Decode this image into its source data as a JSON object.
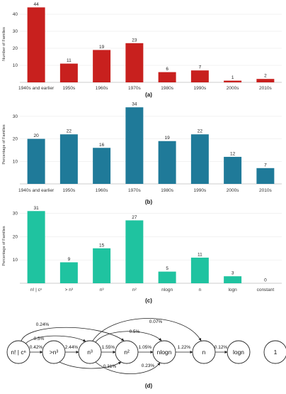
{
  "chart_data": [
    {
      "type": "bar",
      "ylabel": "Number of Families",
      "caption": "(a)",
      "color": "#c8201e",
      "ylim": [
        0,
        45
      ],
      "yticks": [
        10,
        20,
        30,
        40
      ],
      "categories": [
        "1940s and earlier",
        "1950s",
        "1960s",
        "1970s",
        "1980s",
        "1990s",
        "2000s",
        "2010s"
      ],
      "values": [
        44,
        11,
        19,
        23,
        6,
        7,
        1,
        2
      ]
    },
    {
      "type": "bar",
      "ylabel": "Percentage of Families",
      "caption": "(b)",
      "color": "#1f7a99",
      "ylim": [
        0,
        35
      ],
      "yticks": [
        10,
        20,
        30
      ],
      "categories": [
        "1940s and earlier",
        "1950s",
        "1960s",
        "1970s",
        "1980s",
        "1990s",
        "2000s",
        "2010s"
      ],
      "values": [
        20,
        22,
        16,
        34,
        19,
        22,
        12,
        7
      ]
    },
    {
      "type": "bar",
      "ylabel": "Percentage of Families",
      "caption": "(c)",
      "color": "#1fc3a0",
      "ylim": [
        0,
        32
      ],
      "yticks": [
        10,
        20,
        30
      ],
      "categories": [
        "n! | cⁿ",
        "> n³",
        "n³",
        "n²",
        "nlogn",
        "n",
        "logn",
        "constant"
      ],
      "values": [
        31,
        9,
        15,
        27,
        5,
        11,
        3,
        0
      ]
    }
  ],
  "diagram": {
    "caption": "(d)",
    "nodes": [
      {
        "id": "fact",
        "label": "n! | cⁿ"
      },
      {
        "id": "gtn3",
        "label": ">n³"
      },
      {
        "id": "n3",
        "label": "n³"
      },
      {
        "id": "n2",
        "label": "n²"
      },
      {
        "id": "nlogn",
        "label": "nlogn"
      },
      {
        "id": "n",
        "label": "n"
      },
      {
        "id": "logn",
        "label": "logn"
      },
      {
        "id": "one",
        "label": "1"
      }
    ],
    "edges": [
      {
        "from": "fact",
        "to": "gtn3",
        "label": "0.42%"
      },
      {
        "from": "gtn3",
        "to": "n3",
        "label": "2.44%"
      },
      {
        "from": "n3",
        "to": "n2",
        "label": "1.55%"
      },
      {
        "from": "n2",
        "to": "nlogn",
        "label": "1.05%"
      },
      {
        "from": "nlogn",
        "to": "n",
        "label": "1.22%"
      },
      {
        "from": "n",
        "to": "logn",
        "label": "0.12%"
      },
      {
        "from": "fact",
        "to": "n3",
        "label": "0.5%"
      },
      {
        "from": "fact",
        "to": "n2",
        "label": "0.24%"
      },
      {
        "from": "n3",
        "to": "n",
        "label": "0.07%"
      },
      {
        "from": "n3",
        "to": "nlogn",
        "label": "0.5%"
      },
      {
        "from": "gtn3",
        "to": "n2",
        "label": "0.31%"
      },
      {
        "from": "n3",
        "to": "nlogn",
        "label": "0.23%"
      }
    ]
  }
}
